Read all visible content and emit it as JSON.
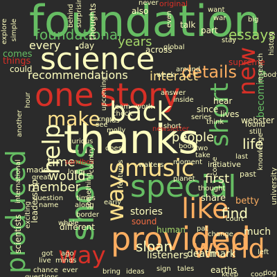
{
  "colors": {
    "background": "#2b2b2b",
    "green": "#1f9a5a",
    "light_green": "#66bd63",
    "pale_green": "#a6d96a",
    "yellow": "#fee08b",
    "pale_yellow": "#ffffbf",
    "orange": "#fdae61",
    "dark_orange": "#f46d43",
    "red": "#d73027",
    "dark_red": "#a50026"
  },
  "words": [
    {
      "text": "foundation",
      "color": "light_green"
    },
    {
      "text": "science",
      "color": "pale_yellow"
    },
    {
      "text": "thanks",
      "color": "pale_yellow"
    },
    {
      "text": "one",
      "color": "red"
    },
    {
      "text": "story",
      "color": "red"
    },
    {
      "text": "shows",
      "color": "light_green"
    },
    {
      "text": "provided",
      "color": "orange"
    },
    {
      "text": "special",
      "color": "light_green"
    },
    {
      "text": "music",
      "color": "yellow"
    },
    {
      "text": "back",
      "color": "pale_yellow"
    },
    {
      "text": "like",
      "color": "orange"
    },
    {
      "text": "world",
      "color": "orange"
    },
    {
      "text": "produced",
      "color": "light_green"
    },
    {
      "text": "short",
      "color": "light_green"
    },
    {
      "text": "new",
      "color": "red"
    },
    {
      "text": "ways",
      "color": "yellow"
    },
    {
      "text": "help",
      "color": "pale_yellow"
    },
    {
      "text": "way",
      "color": "red"
    },
    {
      "text": "make",
      "color": "yellow"
    },
    {
      "text": "details",
      "color": "orange"
    },
    {
      "text": "foundational",
      "color": "light_green"
    },
    {
      "text": "recommendations",
      "color": "pale_yellow"
    },
    {
      "text": "interact",
      "color": "yellow"
    },
    {
      "text": "essays",
      "color": "pale_green"
    },
    {
      "text": "years",
      "color": "pale_green"
    },
    {
      "text": "people",
      "color": "pale_yellow"
    },
    {
      "text": "first",
      "color": "pale_yellow"
    },
    {
      "text": "life",
      "color": "pale_yellow"
    },
    {
      "text": "sloan",
      "color": "pale_yellow"
    },
    {
      "text": "would",
      "color": "pale_yellow"
    },
    {
      "text": "member",
      "color": "pale_yellow"
    },
    {
      "text": "time",
      "color": "pale_yellow"
    },
    {
      "text": "find",
      "color": "pale_yellow"
    },
    {
      "text": "every",
      "color": "pale_yellow"
    },
    {
      "text": "becoming",
      "color": "light_green"
    },
    {
      "text": "listeners",
      "color": "pale_yellow"
    },
    {
      "text": "death",
      "color": "pale_yellow"
    },
    {
      "text": "mark",
      "color": "pale_yellow"
    },
    {
      "text": "earths",
      "color": "pale_yellow"
    },
    {
      "text": "stories",
      "color": "pale_yellow"
    },
    {
      "text": "share",
      "color": "pale_yellow"
    },
    {
      "text": "betty",
      "color": "orange"
    },
    {
      "text": "much",
      "color": "pale_yellow"
    },
    {
      "text": "human",
      "color": "pale_green"
    },
    {
      "text": "sound",
      "color": "dark_orange"
    },
    {
      "text": "leadership",
      "color": "pale_yellow"
    },
    {
      "text": "different",
      "color": "pale_yellow"
    },
    {
      "text": "comes",
      "color": "light_green"
    },
    {
      "text": "things",
      "color": "red"
    },
    {
      "text": "could",
      "color": "pale_yellow"
    },
    {
      "text": "day",
      "color": "pale_yellow"
    },
    {
      "text": "thoughts",
      "color": "pale_yellow"
    },
    {
      "text": "across",
      "color": "pale_yellow"
    },
    {
      "text": "hear",
      "color": "pale_yellow"
    },
    {
      "text": "since",
      "color": "pale_yellow"
    },
    {
      "text": "lives",
      "color": "pale_yellow"
    },
    {
      "text": "talk",
      "color": "pale_yellow"
    },
    {
      "text": "part",
      "color": "pale_yellow"
    },
    {
      "text": "supreme",
      "color": "red"
    },
    {
      "text": "team",
      "color": "pale_yellow"
    },
    {
      "text": "check",
      "color": "pale_yellow"
    },
    {
      "text": "plus",
      "color": "pale_yellow"
    },
    {
      "text": "molly",
      "color": "pale_yellow"
    },
    {
      "text": "work",
      "color": "pale_yellow"
    },
    {
      "text": "answer",
      "color": "pale_yellow"
    },
    {
      "text": "inside",
      "color": "pale_yellow"
    },
    {
      "text": "newsletter",
      "color": "red"
    },
    {
      "text": "webster",
      "color": "pale_yellow"
    },
    {
      "text": "found",
      "color": "pale_yellow"
    },
    {
      "text": "initiative",
      "color": "pale_yellow"
    },
    {
      "text": "past",
      "color": "pale_yellow"
    },
    {
      "text": "book",
      "color": "pale_yellow"
    },
    {
      "text": "two",
      "color": "pale_yellow"
    },
    {
      "text": "take",
      "color": "pale_yellow"
    },
    {
      "text": "walters",
      "color": "pale_yellow"
    },
    {
      "text": "last",
      "color": "pale_yellow"
    },
    {
      "text": "court",
      "color": "pale_yellow"
    },
    {
      "text": "series",
      "color": "pale_yellow"
    },
    {
      "text": "think",
      "color": "pale_yellow"
    },
    {
      "text": "also",
      "color": "pale_yellow"
    },
    {
      "text": "original",
      "color": "red"
    },
    {
      "text": "never",
      "color": "pale_yellow"
    },
    {
      "text": "want",
      "color": "pale_yellow"
    },
    {
      "text": "war",
      "color": "pale_yellow"
    },
    {
      "text": "history",
      "color": "pale_yellow"
    },
    {
      "text": "big",
      "color": "pale_yellow"
    },
    {
      "text": "even",
      "color": "pale_yellow"
    },
    {
      "text": "around",
      "color": "pale_yellow"
    },
    {
      "text": "global",
      "color": "pale_yellow"
    },
    {
      "text": "week",
      "color": "pale_yellow"
    },
    {
      "text": "body",
      "color": "pale_yellow"
    },
    {
      "text": "still",
      "color": "pale_yellow"
    },
    {
      "text": "explore",
      "color": "pale_yellow"
    },
    {
      "text": "simple",
      "color": "pale_yellow"
    },
    {
      "text": "hour",
      "color": "pale_yellow"
    },
    {
      "text": "sandbox",
      "color": "red"
    },
    {
      "text": "moment",
      "color": "pale_yellow"
    },
    {
      "text": "made",
      "color": "pale_yellow"
    },
    {
      "text": "great",
      "color": "pale_yellow"
    },
    {
      "text": "long",
      "color": "pale_yellow"
    },
    {
      "text": "question",
      "color": "pale_yellow"
    },
    {
      "text": "name",
      "color": "pale_yellow"
    },
    {
      "text": "along",
      "color": "pale_yellow"
    },
    {
      "text": "something",
      "color": "pale_yellow"
    },
    {
      "text": "pat",
      "color": "pale_yellow"
    },
    {
      "text": "change",
      "color": "pale_yellow"
    },
    {
      "text": "chance",
      "color": "pale_yellow"
    },
    {
      "text": "ever",
      "color": "pale_yellow"
    },
    {
      "text": "scientists",
      "color": "pale_yellow"
    },
    {
      "text": "exciting",
      "color": "pale_yellow"
    },
    {
      "text": "international",
      "color": "pale_yellow"
    },
    {
      "text": "another",
      "color": "pale_yellow"
    },
    {
      "text": "questions",
      "color": "pale_yellow"
    },
    {
      "text": "live",
      "color": "pale_yellow"
    },
    {
      "text": "got",
      "color": "pale_yellow"
    },
    {
      "text": "ago",
      "color": "pale_yellow"
    },
    {
      "text": "university",
      "color": "pale_yellow"
    },
    {
      "text": "thought",
      "color": "pale_yellow"
    },
    {
      "text": "come",
      "color": "pale_yellow"
    },
    {
      "text": "country",
      "color": "pale_yellow"
    },
    {
      "text": "know",
      "color": "pale_yellow"
    },
    {
      "text": "see",
      "color": "pale_yellow"
    },
    {
      "text": "left",
      "color": "pale_yellow"
    },
    {
      "text": "research",
      "color": "pale_yellow"
    },
    {
      "text": "does",
      "color": "pale_yellow"
    },
    {
      "text": "border",
      "color": "pale_yellow"
    },
    {
      "text": "whole",
      "color": "pale_yellow"
    },
    {
      "text": "features",
      "color": "pale_yellow"
    },
    {
      "text": "surprising",
      "color": "pale_yellow"
    },
    {
      "text": "stay",
      "color": "pale_yellow"
    },
    {
      "text": "upcoming",
      "color": "pale_yellow"
    },
    {
      "text": "behind",
      "color": "pale_yellow"
    },
    {
      "text": "keep",
      "color": "pale_yellow"
    },
    {
      "text": "cool",
      "color": "pale_yellow"
    },
    {
      "text": "dog",
      "color": "pale_yellow"
    },
    {
      "text": "times",
      "color": "pale_yellow"
    },
    {
      "text": "curious",
      "color": "pale_yellow"
    },
    {
      "text": "minds",
      "color": "pale_yellow"
    },
    {
      "text": "knowledge",
      "color": "pale_yellow"
    },
    {
      "text": "planet",
      "color": "pale_yellow"
    },
    {
      "text": "early",
      "color": "pale_yellow"
    },
    {
      "text": "short",
      "color": "pale_yellow"
    },
    {
      "text": "sign",
      "color": "pale_yellow"
    },
    {
      "text": "tales",
      "color": "pale_yellow"
    },
    {
      "text": "bring",
      "color": "pale_yellow"
    },
    {
      "text": "ideas",
      "color": "pale_yellow"
    }
  ]
}
